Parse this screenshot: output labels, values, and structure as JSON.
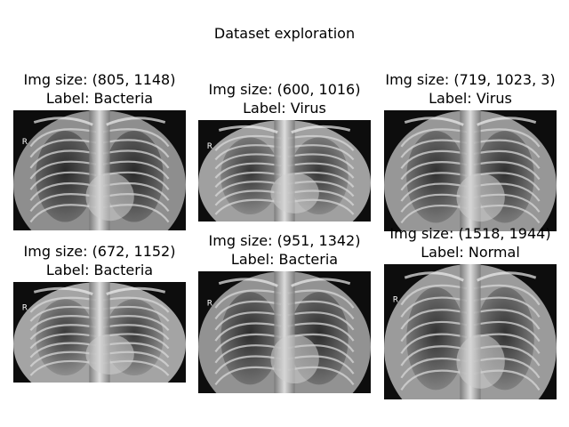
{
  "figure": {
    "title": "Dataset exploration"
  },
  "panels": [
    {
      "size_text": "Img size: (805, 1148)",
      "label_text": "Label: Bacteria",
      "marker": "R",
      "brightness": 0.35
    },
    {
      "size_text": "Img size: (600, 1016)",
      "label_text": "Label: Virus",
      "marker": "R",
      "brightness": 0.55
    },
    {
      "size_text": "Img size: (719, 1023, 3)",
      "label_text": "Label: Virus",
      "marker": "",
      "brightness": 0.45
    },
    {
      "size_text": "Img size: (672, 1152)",
      "label_text": "Label: Bacteria",
      "marker": "R",
      "brightness": 0.6
    },
    {
      "size_text": "Img size: (951, 1342)",
      "label_text": "Label: Bacteria",
      "marker": "R",
      "brightness": 0.4
    },
    {
      "size_text": "Img size: (1518, 1944)",
      "label_text": "Label: Normal",
      "marker": "R",
      "brightness": 0.5
    }
  ]
}
